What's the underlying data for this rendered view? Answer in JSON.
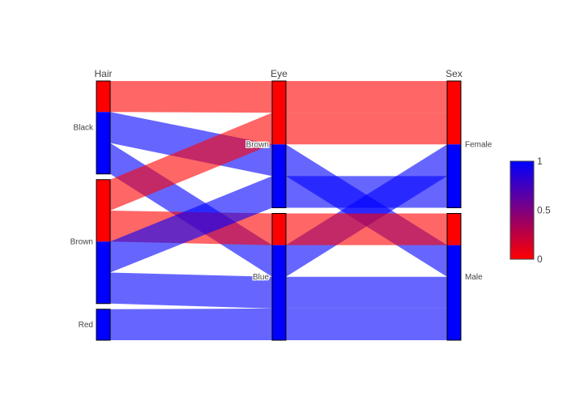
{
  "chart_data": {
    "type": "parcats",
    "dimensions": [
      {
        "label": "Hair",
        "categories": [
          "Black",
          "Brown",
          "Red"
        ]
      },
      {
        "label": "Eye",
        "categories": [
          "Brown",
          "Blue"
        ]
      },
      {
        "label": "Sex",
        "categories": [
          "Female",
          "Male"
        ]
      }
    ],
    "paths": [
      {
        "Hair": "Black",
        "Eye": "Brown",
        "Sex": "Female",
        "count": 1,
        "color": 0
      },
      {
        "Hair": "Black",
        "Eye": "Brown",
        "Sex": "Male",
        "count": 1,
        "color": 1
      },
      {
        "Hair": "Black",
        "Eye": "Blue",
        "Sex": "Female",
        "count": 1,
        "color": 1
      },
      {
        "Hair": "Brown",
        "Eye": "Brown",
        "Sex": "Female",
        "count": 1,
        "color": 0
      },
      {
        "Hair": "Brown",
        "Eye": "Blue",
        "Sex": "Male",
        "count": 1,
        "color": 0
      },
      {
        "Hair": "Brown",
        "Eye": "Brown",
        "Sex": "Female",
        "count": 1,
        "color": 1
      },
      {
        "Hair": "Brown",
        "Eye": "Blue",
        "Sex": "Male",
        "count": 1,
        "color": 1
      },
      {
        "Hair": "Red",
        "Eye": "Blue",
        "Sex": "Male",
        "count": 1,
        "color": 1
      }
    ],
    "colorscale": [
      [
        0,
        "#ff0000"
      ],
      [
        1,
        "#0000ff"
      ]
    ],
    "colorbar": {
      "ticks": [
        "0",
        "0.5",
        "1"
      ],
      "range": [
        0,
        1
      ]
    }
  }
}
